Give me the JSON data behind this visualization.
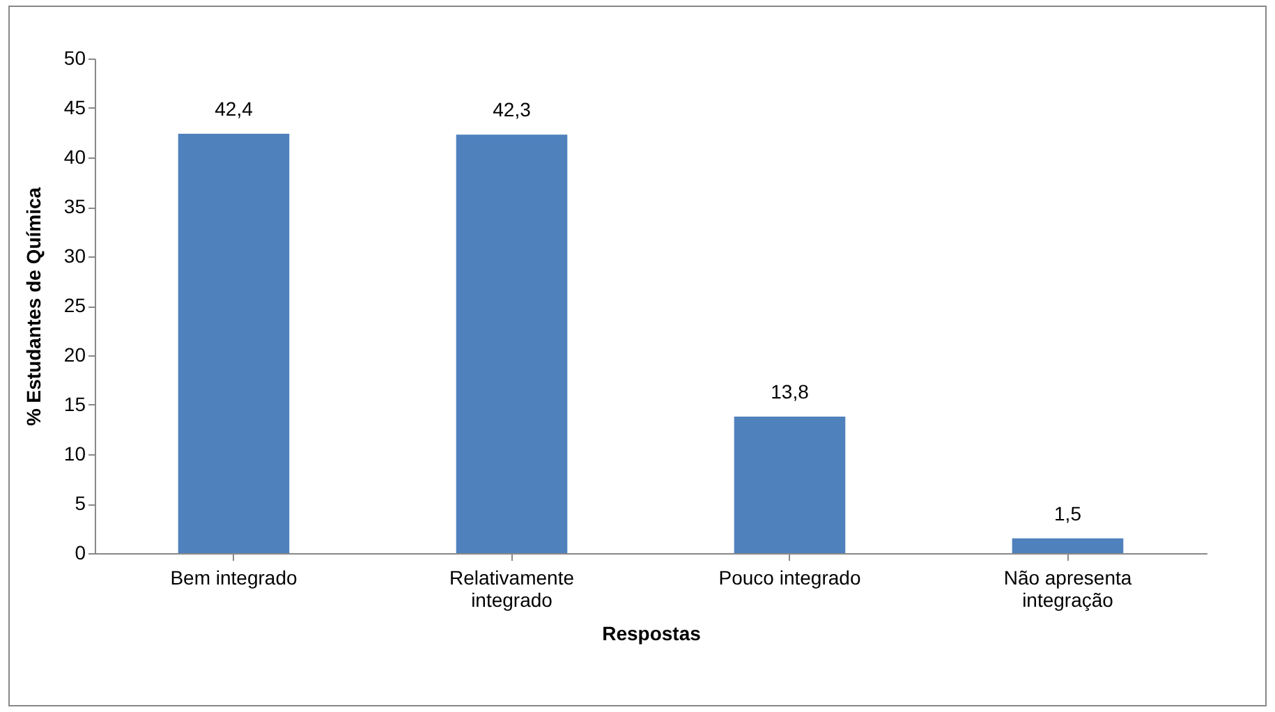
{
  "chart_data": {
    "type": "bar",
    "xlabel": "Respostas",
    "ylabel": "% Estudantes de Química",
    "categories": [
      "Bem integrado",
      "Relativamente integrado",
      "Pouco integrado",
      "Não apresenta integração"
    ],
    "values": [
      42.4,
      42.3,
      13.8,
      1.5
    ],
    "value_labels": [
      "42,4",
      "42,3",
      "13,8",
      "1,5"
    ],
    "color": "#4f81bd",
    "ylim": [
      0,
      50
    ],
    "yticks": [
      0,
      5,
      10,
      15,
      20,
      25,
      30,
      35,
      40,
      45,
      50
    ],
    "grid": false
  }
}
